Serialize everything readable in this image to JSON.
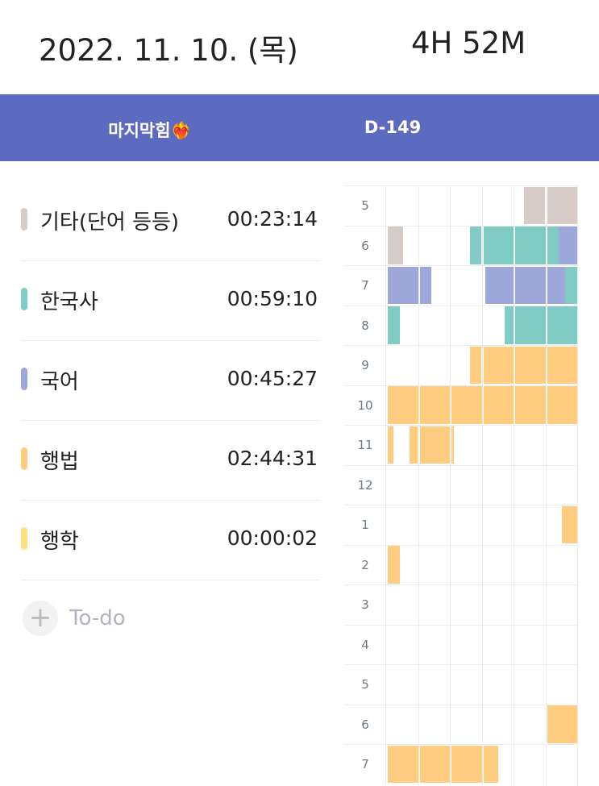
{
  "header": {
    "date": "2022. 11. 10. (목)",
    "total": "4H 52M"
  },
  "banner": {
    "goal": "마지막힘❤️‍🔥",
    "dday": "D-149",
    "color": "#5c6bc0"
  },
  "subjects": [
    {
      "name": "기타(단어 등등)",
      "time": "00:23:14",
      "color": "#d6cbc7"
    },
    {
      "name": "한국사",
      "time": "00:59:10",
      "color": "#80cbc4"
    },
    {
      "name": "국어",
      "time": "00:45:27",
      "color": "#9fa8da"
    },
    {
      "name": "행법",
      "time": "02:44:31",
      "color": "#ffcc80"
    },
    {
      "name": "행학",
      "time": "00:00:02",
      "color": "#ffe082"
    }
  ],
  "todo": {
    "label": "To-do",
    "icon": "plus-icon"
  },
  "timetable": {
    "hours": [
      "5",
      "6",
      "7",
      "8",
      "9",
      "10",
      "11",
      "12",
      "1",
      "2",
      "3",
      "4",
      "5",
      "6",
      "7"
    ],
    "blocks": [
      {
        "row": 0,
        "start": 43,
        "end": 60,
        "subject": 0
      },
      {
        "row": 1,
        "start": 0,
        "end": 5,
        "subject": 0
      },
      {
        "row": 1,
        "start": 26,
        "end": 54,
        "subject": 1
      },
      {
        "row": 1,
        "start": 54,
        "end": 60,
        "subject": 2
      },
      {
        "row": 2,
        "start": 0,
        "end": 14,
        "subject": 2
      },
      {
        "row": 2,
        "start": 31,
        "end": 56,
        "subject": 2
      },
      {
        "row": 2,
        "start": 56,
        "end": 60,
        "subject": 1
      },
      {
        "row": 3,
        "start": 0,
        "end": 4,
        "subject": 1
      },
      {
        "row": 3,
        "start": 37,
        "end": 60,
        "subject": 1
      },
      {
        "row": 4,
        "start": 26,
        "end": 60,
        "subject": 3
      },
      {
        "row": 5,
        "start": 0,
        "end": 60,
        "subject": 3
      },
      {
        "row": 6,
        "start": 0,
        "end": 2,
        "subject": 3
      },
      {
        "row": 6,
        "start": 7,
        "end": 21,
        "subject": 3
      },
      {
        "row": 8,
        "start": 55,
        "end": 60,
        "subject": 3
      },
      {
        "row": 9,
        "start": 0,
        "end": 4,
        "subject": 3
      },
      {
        "row": 13,
        "start": 50,
        "end": 60,
        "subject": 3
      },
      {
        "row": 14,
        "start": 0,
        "end": 35,
        "subject": 3
      }
    ]
  }
}
